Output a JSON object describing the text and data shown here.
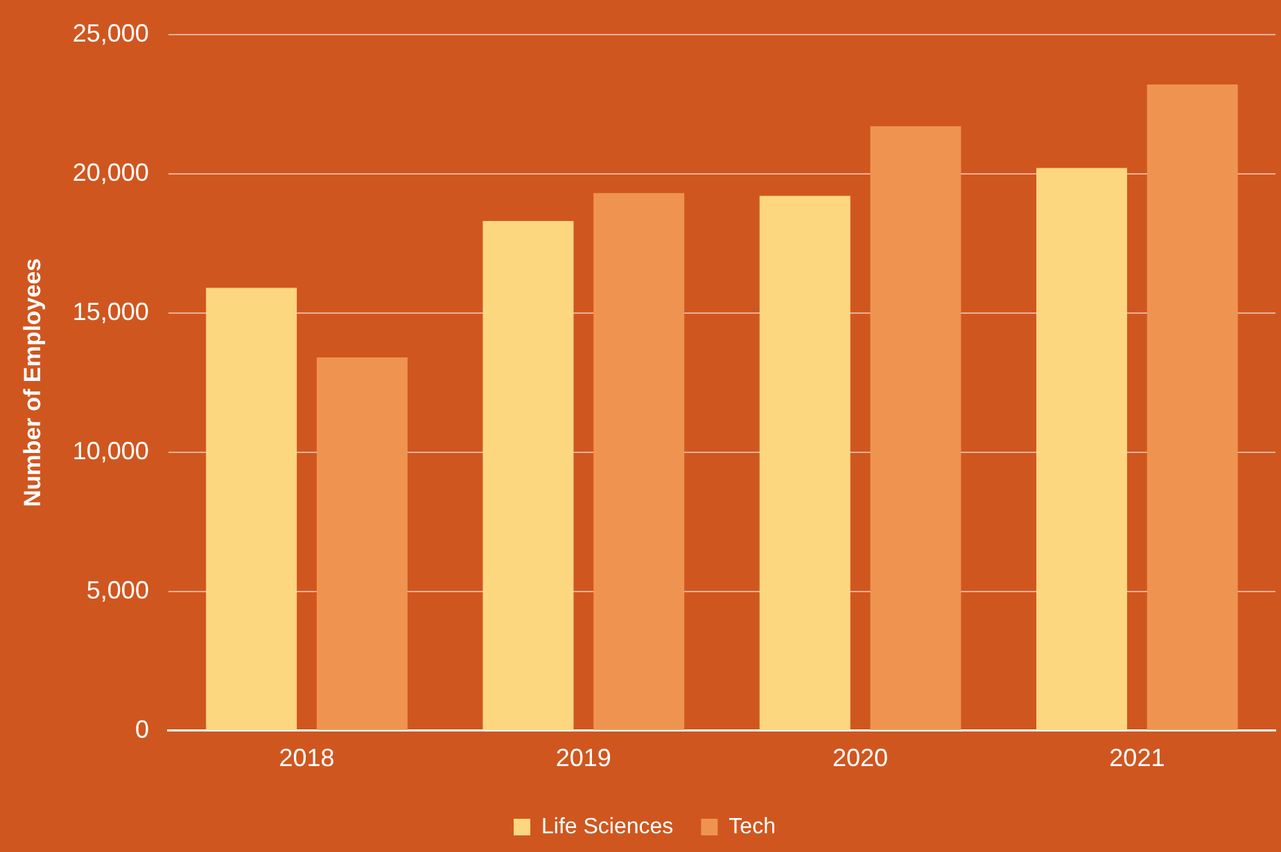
{
  "chart_data": {
    "type": "bar",
    "ylabel": "Number of Employees",
    "categories": [
      "2018",
      "2019",
      "2020",
      "2021"
    ],
    "series": [
      {
        "name": "Life Sciences",
        "color": "#fdd680",
        "values": [
          15900,
          18300,
          19200,
          20200
        ]
      },
      {
        "name": "Tech",
        "color": "#ef9450",
        "values": [
          13400,
          19300,
          21700,
          23200
        ]
      }
    ],
    "ylim": [
      0,
      25000
    ],
    "yticks": [
      {
        "value": 0,
        "label": "0"
      },
      {
        "value": 5000,
        "label": "5,000"
      },
      {
        "value": 10000,
        "label": "10,000"
      },
      {
        "value": 15000,
        "label": "15,000"
      },
      {
        "value": 20000,
        "label": "20,000"
      },
      {
        "value": 25000,
        "label": "25,000"
      }
    ],
    "grid": "y",
    "legend": "bottom"
  }
}
